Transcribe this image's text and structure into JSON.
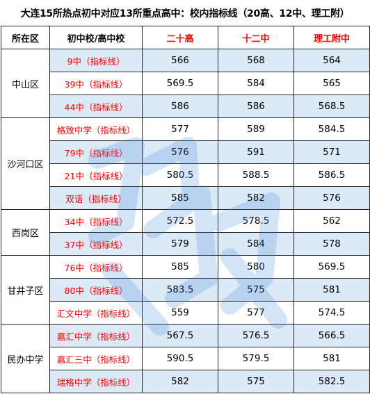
{
  "title": "大连15所热点初中对应13所重点高中：校内指标线（20高、12中、理工附）",
  "headers": {
    "district": "所在区",
    "school": "初中校/高中校",
    "col1": "二十高",
    "col2": "十二中",
    "col3": "理工附中"
  },
  "groups": [
    {
      "district": "中山区",
      "rows": [
        {
          "school": "9中（指标线）",
          "v1": "566",
          "v2": "568",
          "v3": "564"
        },
        {
          "school": "39中（指标线）",
          "v1": "569.5",
          "v2": "584",
          "v3": "565"
        },
        {
          "school": "44中（指标线）",
          "v1": "586",
          "v2": "586",
          "v3": "568.5"
        }
      ]
    },
    {
      "district": "沙河口区",
      "rows": [
        {
          "school": "格致中学（指标线）",
          "v1": "577",
          "v2": "589",
          "v3": "584.5"
        },
        {
          "school": "79中（指标线）",
          "v1": "576",
          "v2": "591",
          "v3": "571"
        },
        {
          "school": "21中（指标线）",
          "v1": "580.5",
          "v2": "588.5",
          "v3": "586.5"
        },
        {
          "school": "双语（指标线）",
          "v1": "585",
          "v2": "582",
          "v3": "576"
        }
      ]
    },
    {
      "district": "西岗区",
      "rows": [
        {
          "school": "34中（指标线）",
          "v1": "572.5",
          "v2": "578.5",
          "v3": "562"
        },
        {
          "school": "37中（指标线）",
          "v1": "579",
          "v2": "584",
          "v3": "578"
        }
      ]
    },
    {
      "district": "甘井子区",
      "rows": [
        {
          "school": "76中（指标线）",
          "v1": "585",
          "v2": "580",
          "v3": "569.5"
        },
        {
          "school": "80中（指标线）",
          "v1": "583.5",
          "v2": "575",
          "v3": "581"
        },
        {
          "school": "汇文中学（指标线）",
          "v1": "559",
          "v2": "577",
          "v3": "574.5"
        }
      ]
    },
    {
      "district": "民办中学",
      "rows": [
        {
          "school": "嘉汇中学（指标线）",
          "v1": "567.5",
          "v2": "576.5",
          "v3": "566.5"
        },
        {
          "school": "嘉汇三中（指标线）",
          "v1": "590.5",
          "v2": "579.5",
          "v3": "581"
        },
        {
          "school": "瑞格中学（指标线）",
          "v1": "582",
          "v2": "575",
          "v3": "582.5"
        }
      ]
    }
  ],
  "colors": {
    "shade": "#dce9f6",
    "highlight": "#ff0000",
    "watermark": "#3d86d8"
  }
}
